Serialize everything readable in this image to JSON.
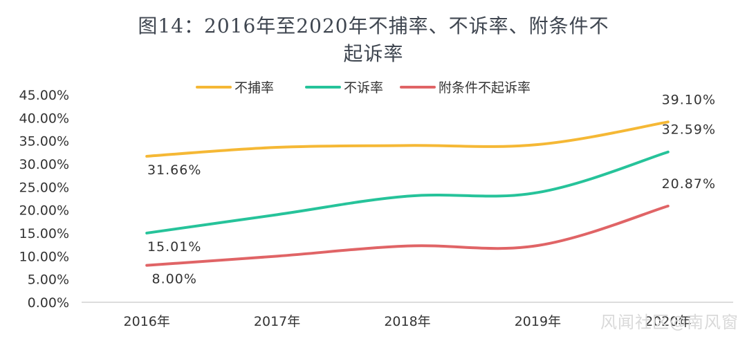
{
  "chart_data": {
    "type": "line",
    "title": "图14：2016年至2020年不捕率、不诉率、附条件不起诉率",
    "title_lines": [
      "图14：2016年至2020年不捕率、不诉率、附条件不",
      "起诉率"
    ],
    "categories": [
      "2016年",
      "2017年",
      "2018年",
      "2019年",
      "2020年"
    ],
    "ylim": [
      0,
      45
    ],
    "yticks": [
      "0.00%",
      "5.00%",
      "10.00%",
      "15.00%",
      "20.00%",
      "25.00%",
      "30.00%",
      "35.00%",
      "40.00%",
      "45.00%"
    ],
    "legend_position": "top",
    "grid": false,
    "series": [
      {
        "name": "不捕率",
        "color": "#f5b835",
        "values": [
          31.66,
          33.6,
          34.0,
          34.2,
          39.1
        ],
        "data_labels": [
          {
            "index": 0,
            "text": "31.66%"
          },
          {
            "index": 4,
            "text": "39.10%"
          }
        ]
      },
      {
        "name": "不诉率",
        "color": "#26c39a",
        "values": [
          15.01,
          19.0,
          23.0,
          23.8,
          32.59
        ],
        "data_labels": [
          {
            "index": 0,
            "text": "15.01%"
          },
          {
            "index": 4,
            "text": "32.59%"
          }
        ]
      },
      {
        "name": "附条件不起诉率",
        "color": "#e06466",
        "values": [
          8.0,
          10.0,
          12.2,
          12.3,
          20.87
        ],
        "data_labels": [
          {
            "index": 0,
            "text": "8.00%"
          },
          {
            "index": 4,
            "text": "20.87%"
          }
        ]
      }
    ]
  },
  "watermark": "风闻社区@南风窗"
}
